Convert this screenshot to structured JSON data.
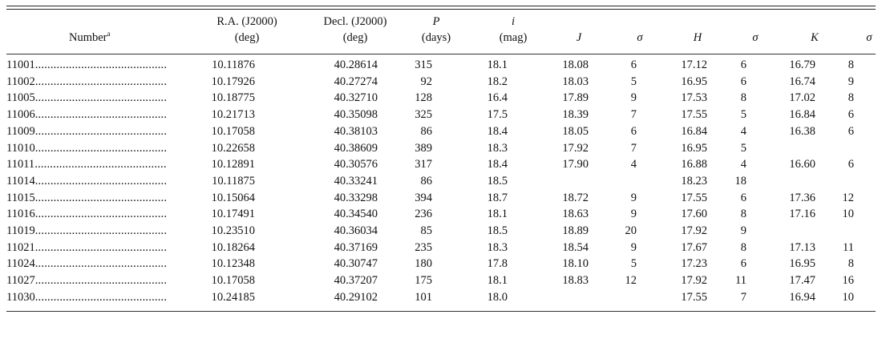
{
  "headers": {
    "number": "Number",
    "number_sup": "a",
    "ra_line1": "R.A. (J2000)",
    "ra_line2": "(deg)",
    "dec_line1": "Decl. (J2000)",
    "dec_line2": "(deg)",
    "p_line1": "P",
    "p_line2": "(days)",
    "i_line1": "i",
    "i_line2": "(mag)",
    "j": "J",
    "sigma_j": "σ",
    "h": "H",
    "sigma_h": "σ",
    "k": "K",
    "sigma_k": "σ"
  },
  "leader": "...........................................",
  "rows": [
    {
      "number": "11001",
      "ra": "10.11876",
      "dec": "40.28614",
      "p": "315",
      "i": "18.1",
      "j": "18.08",
      "sj": "6",
      "h": "17.12",
      "sh": "6",
      "k": "16.79",
      "sk": "8"
    },
    {
      "number": "11002",
      "ra": "10.17926",
      "dec": "40.27274",
      "p": "92",
      "i": "18.2",
      "j": "18.03",
      "sj": "5",
      "h": "16.95",
      "sh": "6",
      "k": "16.74",
      "sk": "9"
    },
    {
      "number": "11005",
      "ra": "10.18775",
      "dec": "40.32710",
      "p": "128",
      "i": "16.4",
      "j": "17.89",
      "sj": "9",
      "h": "17.53",
      "sh": "8",
      "k": "17.02",
      "sk": "8"
    },
    {
      "number": "11006",
      "ra": "10.21713",
      "dec": "40.35098",
      "p": "325",
      "i": "17.5",
      "j": "18.39",
      "sj": "7",
      "h": "17.55",
      "sh": "5",
      "k": "16.84",
      "sk": "6"
    },
    {
      "number": "11009",
      "ra": "10.17058",
      "dec": "40.38103",
      "p": "86",
      "i": "18.4",
      "j": "18.05",
      "sj": "6",
      "h": "16.84",
      "sh": "4",
      "k": "16.38",
      "sk": "6"
    },
    {
      "number": "11010",
      "ra": "10.22658",
      "dec": "40.38609",
      "p": "389",
      "i": "18.3",
      "j": "17.92",
      "sj": "7",
      "h": "16.95",
      "sh": "5",
      "k": "",
      "sk": ""
    },
    {
      "number": "11011",
      "ra": "10.12891",
      "dec": "40.30576",
      "p": "317",
      "i": "18.4",
      "j": "17.90",
      "sj": "4",
      "h": "16.88",
      "sh": "4",
      "k": "16.60",
      "sk": "6"
    },
    {
      "number": "11014",
      "ra": "10.11875",
      "dec": "40.33241",
      "p": "86",
      "i": "18.5",
      "j": "",
      "sj": "",
      "h": "18.23",
      "sh": "18",
      "k": "",
      "sk": ""
    },
    {
      "number": "11015",
      "ra": "10.15064",
      "dec": "40.33298",
      "p": "394",
      "i": "18.7",
      "j": "18.72",
      "sj": "9",
      "h": "17.55",
      "sh": "6",
      "k": "17.36",
      "sk": "12"
    },
    {
      "number": "11016",
      "ra": "10.17491",
      "dec": "40.34540",
      "p": "236",
      "i": "18.1",
      "j": "18.63",
      "sj": "9",
      "h": "17.60",
      "sh": "8",
      "k": "17.16",
      "sk": "10"
    },
    {
      "number": "11019",
      "ra": "10.23510",
      "dec": "40.36034",
      "p": "85",
      "i": "18.5",
      "j": "18.89",
      "sj": "20",
      "h": "17.92",
      "sh": "9",
      "k": "",
      "sk": ""
    },
    {
      "number": "11021",
      "ra": "10.18264",
      "dec": "40.37169",
      "p": "235",
      "i": "18.3",
      "j": "18.54",
      "sj": "9",
      "h": "17.67",
      "sh": "8",
      "k": "17.13",
      "sk": "11"
    },
    {
      "number": "11024",
      "ra": "10.12348",
      "dec": "40.30747",
      "p": "180",
      "i": "17.8",
      "j": "18.10",
      "sj": "5",
      "h": "17.23",
      "sh": "6",
      "k": "16.95",
      "sk": "8"
    },
    {
      "number": "11027",
      "ra": "10.17058",
      "dec": "40.37207",
      "p": "175",
      "i": "18.1",
      "j": "18.83",
      "sj": "12",
      "h": "17.92",
      "sh": "11",
      "k": "17.47",
      "sk": "16"
    },
    {
      "number": "11030",
      "ra": "10.24185",
      "dec": "40.29102",
      "p": "101",
      "i": "18.0",
      "j": "",
      "sj": "",
      "h": "17.55",
      "sh": "7",
      "k": "16.94",
      "sk": "10"
    }
  ]
}
